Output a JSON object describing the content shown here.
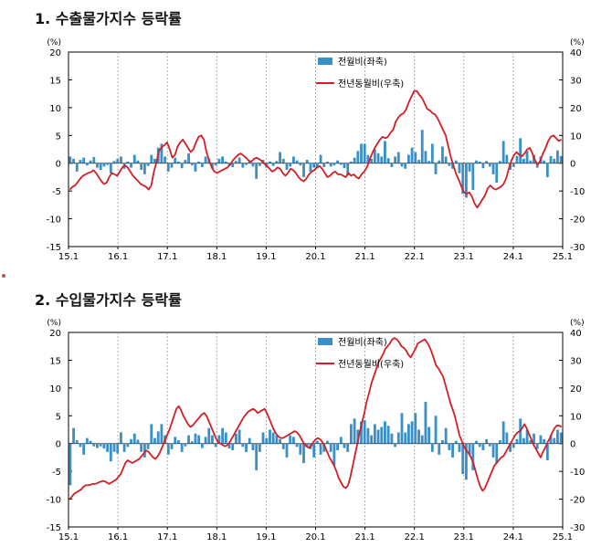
{
  "colors": {
    "bar": "#3b8fc7",
    "line": "#d21f26",
    "grid": "#9a9a9a",
    "axis": "#000000"
  },
  "chart_data": [
    {
      "type": "bar+line",
      "title": "1. 수출물가지수 등락률",
      "left_unit": "(%)",
      "right_unit": "(%)",
      "ylim_left": [
        -15,
        20
      ],
      "ylim_right": [
        -30,
        40
      ],
      "yticks_left": [
        "20",
        "15",
        "10",
        "5",
        "0",
        "-5",
        "-10",
        "-15"
      ],
      "yticks_right": [
        "40",
        "30",
        "20",
        "10",
        "0",
        "-10",
        "-20",
        "-30"
      ],
      "xticks": [
        "15.1",
        "16.1",
        "17.1",
        "18.1",
        "19.1",
        "20.1",
        "21.1",
        "22.1",
        "23.1",
        "24.1",
        "25.1"
      ],
      "legend": [
        "전월비(좌축)",
        "전년동월비(우축)"
      ],
      "series": [
        {
          "name": "전월비(좌축)",
          "axis": "left",
          "kind": "bar",
          "values": [
            1.2,
            0.8,
            -1.5,
            0.6,
            1.0,
            -0.4,
            0.5,
            1.1,
            -0.8,
            -1.2,
            -0.6,
            -0.3,
            -1.8,
            0.4,
            0.8,
            1.2,
            -1.0,
            0.3,
            -0.8,
            1.5,
            0.5,
            -1.2,
            -2.0,
            -0.5,
            1.5,
            0.8,
            2.8,
            3.5,
            1.2,
            -1.5,
            -0.8,
            1.0,
            0.3,
            -0.9,
            0.6,
            1.8,
            -0.4,
            -1.5,
            0.3,
            -0.7,
            1.2,
            0.8,
            -1.0,
            -0.4,
            0.8,
            1.2,
            0.3,
            -0.5,
            -0.7,
            0.4,
            1.0,
            -0.8,
            -0.3,
            0.5,
            -0.6,
            -2.8,
            -0.5,
            0.6,
            -0.8,
            0.3,
            -0.5,
            0.4,
            2.0,
            0.8,
            -1.2,
            -0.6,
            1.2,
            0.5,
            -0.4,
            -2.5,
            0.6,
            -1.5,
            -0.8,
            -0.9,
            1.5,
            -0.7,
            0.3,
            -0.6,
            -0.4,
            0.5,
            -0.3,
            -0.9,
            -2.2,
            0.3,
            1.0,
            2.2,
            3.5,
            3.5,
            1.5,
            0.8,
            2.5,
            1.8,
            1.2,
            4.0,
            0.9,
            -0.7,
            1.2,
            2.0,
            -0.6,
            -1.0,
            1.5,
            2.8,
            2.0,
            0.6,
            6.0,
            2.2,
            0.4,
            3.5,
            -2.0,
            0.5,
            3.0,
            1.2,
            -0.5,
            -1.0,
            0.5,
            -1.8,
            -5.5,
            -6.2,
            -1.5,
            -4.8,
            0.5,
            0.3,
            -0.9,
            0.4,
            -0.6,
            -2.0,
            -3.5,
            0.4,
            4.0,
            1.5,
            -1.2,
            -0.7,
            1.3,
            4.5,
            0.8,
            2.2,
            0.5,
            1.5,
            -0.8,
            1.2,
            0.5,
            -2.5,
            1.3,
            0.8,
            2.3,
            1.3
          ]
        },
        {
          "name": "전년동월비(우축)",
          "axis": "right",
          "kind": "line",
          "values": [
            -9.5,
            -8.5,
            -8.0,
            -6.8,
            -5.5,
            -4.5,
            -4.0,
            -3.5,
            -3.2,
            -2.5,
            -3.5,
            -5.0,
            -6.5,
            -7.5,
            -7.0,
            -5.0,
            -3.5,
            -4.0,
            -4.5,
            -3.0,
            -1.5,
            -0.8,
            -1.5,
            -3.0,
            -4.5,
            -5.5,
            -6.5,
            -7.5,
            -8.0,
            -8.5,
            -9.5,
            -8.0,
            -3.0,
            0.5,
            4.5,
            5.8,
            6.5,
            7.5,
            5.0,
            2.0,
            3.0,
            6.0,
            7.5,
            8.5,
            7.0,
            5.5,
            4.0,
            5.0,
            7.5,
            9.5,
            10.0,
            8.5,
            4.0,
            1.0,
            -1.5,
            -3.0,
            -3.5,
            -3.0,
            -2.5,
            -2.0,
            -1.5,
            -0.5,
            1.0,
            2.0,
            3.0,
            3.5,
            2.8,
            2.0,
            1.0,
            0.5,
            1.5,
            2.0,
            1.5,
            0.8,
            -0.2,
            -1.0,
            -2.0,
            -3.0,
            -2.5,
            -1.5,
            -2.0,
            -3.5,
            -4.5,
            -3.5,
            -2.0,
            -2.5,
            -3.5,
            -5.0,
            -6.0,
            -6.5,
            -5.5,
            -4.0,
            -3.0,
            -2.5,
            -1.5,
            -1.0,
            -2.0,
            -3.5,
            -5.0,
            -4.5,
            -3.5,
            -3.0,
            -4.0,
            -4.0,
            -4.5,
            -5.0,
            -3.5,
            -4.5,
            -4.0,
            -5.0,
            -5.5,
            -4.0,
            -3.0,
            -1.5,
            1.0,
            3.5,
            5.5,
            7.0,
            8.5,
            9.5,
            9.0,
            9.5,
            11.0,
            12.0,
            15.0,
            16.5,
            17.5,
            18.0,
            19.5,
            22.0,
            24.0,
            26.0,
            26.0,
            24.5,
            23.5,
            21.5,
            19.5,
            19.0,
            18.0,
            17.5,
            16.0,
            14.0,
            12.0,
            10.0,
            6.0,
            2.0,
            -1.0,
            -4.0,
            -6.0,
            -8.5,
            -10.5,
            -11.0,
            -10.5,
            -12.0,
            -14.5,
            -16.0,
            -14.5,
            -13.0,
            -11.5,
            -9.0,
            -8.0,
            -9.0,
            -9.5,
            -9.0,
            -8.5,
            -7.5,
            -5.5,
            -2.0,
            1.0,
            3.0,
            4.0,
            3.0,
            2.5,
            3.5,
            5.0,
            5.5,
            3.5,
            1.0,
            -0.5,
            1.0,
            3.5,
            5.5,
            8.0,
            9.5,
            10.0,
            9.0,
            8.0,
            8.5
          ]
        }
      ]
    },
    {
      "type": "bar+line",
      "title": "2. 수입물가지수 등락률",
      "left_unit": "(%)",
      "right_unit": "(%)",
      "ylim_left": [
        -15,
        20
      ],
      "ylim_right": [
        -30,
        40
      ],
      "yticks_left": [
        "20",
        "15",
        "10",
        "5",
        "0",
        "-5",
        "-10",
        "-15"
      ],
      "yticks_right": [
        "40",
        "30",
        "20",
        "10",
        "0",
        "-10",
        "-20",
        "-30"
      ],
      "xticks": [
        "15.1",
        "16.1",
        "17.1",
        "18.1",
        "19.1",
        "20.1",
        "21.1",
        "22.1",
        "23.1",
        "24.1",
        "25.1"
      ],
      "legend": [
        "전월비(좌축)",
        "전년동월비(우축)"
      ],
      "series": [
        {
          "name": "전월비(좌축)",
          "axis": "left",
          "kind": "bar",
          "values": [
            -7.5,
            2.8,
            0.6,
            -0.6,
            -2.0,
            1.0,
            0.5,
            -0.5,
            -0.8,
            -0.5,
            -0.9,
            -1.5,
            -3.2,
            -1.5,
            -1.8,
            2.0,
            -1.5,
            -0.6,
            0.8,
            1.8,
            0.7,
            -1.5,
            -2.5,
            -1.0,
            3.5,
            1.0,
            2.2,
            3.5,
            1.5,
            -2.0,
            -1.0,
            1.2,
            0.6,
            -1.5,
            -0.5,
            1.5,
            0.4,
            1.8,
            1.5,
            -0.8,
            1.2,
            2.8,
            1.5,
            -0.6,
            1.5,
            2.8,
            2.0,
            -0.9,
            -1.2,
            1.8,
            2.5,
            -0.6,
            -1.5,
            1.0,
            -1.2,
            -4.8,
            -1.5,
            2.0,
            1.0,
            2.5,
            2.0,
            1.5,
            0.8,
            -1.0,
            -2.5,
            1.5,
            1.2,
            -0.6,
            -2.0,
            -3.5,
            -0.6,
            -1.0,
            -2.5,
            0.5,
            -2.0,
            -1.5,
            0.5,
            -1.5,
            -4.0,
            -1.2,
            1.2,
            -0.8,
            -1.5,
            3.5,
            4.5,
            2.5,
            4.0,
            4.2,
            2.8,
            1.5,
            3.5,
            2.5,
            3.0,
            4.0,
            3.2,
            1.8,
            -0.6,
            2.0,
            5.5,
            2.0,
            3.5,
            4.0,
            5.5,
            2.5,
            1.5,
            7.5,
            3.0,
            -1.5,
            5.0,
            -2.0,
            0.6,
            2.8,
            -1.2,
            -2.5,
            0.5,
            -1.5,
            -5.5,
            -6.5,
            -2.0,
            -4.8,
            0.5,
            -0.6,
            -1.2,
            0.8,
            -0.5,
            -2.5,
            -3.5,
            0.6,
            4.0,
            2.0,
            -1.5,
            -0.8,
            0.8,
            4.5,
            1.0,
            2.5,
            0.6,
            1.8,
            -1.0,
            1.5,
            0.8,
            -3.0,
            1.5,
            1.0,
            2.5,
            2.0
          ]
        },
        {
          "name": "전년동월비(우축)",
          "axis": "right",
          "kind": "line",
          "values": [
            -20.0,
            -19.0,
            -18.0,
            -17.5,
            -17.0,
            -16.5,
            -15.5,
            -15.0,
            -15.0,
            -14.8,
            -14.5,
            -14.5,
            -14.2,
            -13.8,
            -13.5,
            -13.5,
            -14.0,
            -14.5,
            -14.0,
            -13.5,
            -13.0,
            -12.0,
            -11.0,
            -9.0,
            -7.0,
            -6.0,
            -6.5,
            -7.0,
            -6.5,
            -6.0,
            -5.5,
            -4.5,
            -3.5,
            -2.5,
            -3.0,
            -4.0,
            -5.0,
            -5.5,
            -4.5,
            -3.0,
            -1.0,
            1.0,
            3.0,
            5.0,
            7.5,
            10.0,
            12.5,
            13.5,
            12.0,
            10.0,
            8.5,
            7.0,
            6.0,
            6.5,
            7.5,
            8.5,
            9.5,
            10.5,
            11.0,
            10.0,
            8.0,
            6.0,
            4.0,
            2.0,
            0.5,
            0.0,
            -0.5,
            -1.0,
            -0.5,
            0.5,
            2.0,
            3.5,
            5.0,
            6.5,
            8.0,
            9.5,
            10.5,
            11.5,
            12.0,
            12.5,
            12.0,
            11.0,
            11.5,
            12.0,
            12.5,
            11.0,
            9.0,
            7.0,
            5.0,
            3.5,
            2.5,
            2.0,
            2.0,
            2.5,
            3.0,
            3.5,
            4.0,
            4.5,
            4.0,
            3.0,
            1.5,
            0.0,
            -1.0,
            -1.5,
            -1.0,
            0.5,
            1.5,
            2.0,
            1.5,
            0.5,
            -1.0,
            -3.0,
            -5.0,
            -6.5,
            -8.0,
            -10.0,
            -12.5,
            -14.0,
            -15.5,
            -16.0,
            -15.0,
            -12.0,
            -8.0,
            -4.0,
            0.0,
            4.0,
            7.5,
            11.0,
            15.0,
            18.0,
            21.5,
            24.0,
            26.5,
            29.0,
            30.5,
            32.0,
            34.0,
            35.0,
            36.0,
            37.5,
            38.0,
            37.5,
            36.5,
            35.0,
            34.5,
            33.5,
            32.0,
            31.0,
            32.5,
            34.0,
            36.0,
            36.5,
            37.0,
            37.5,
            36.5,
            35.0,
            33.0,
            30.5,
            28.0,
            27.0,
            25.5,
            24.0,
            21.0,
            18.0,
            15.0,
            12.5,
            10.0,
            6.5,
            3.0,
            1.0,
            -1.0,
            -2.5,
            -3.5,
            -5.0,
            -7.0,
            -10.0,
            -13.0,
            -15.5,
            -17.0,
            -16.0,
            -14.0,
            -12.0,
            -10.0,
            -8.0,
            -7.0,
            -6.0,
            -5.0,
            -4.5,
            -3.0,
            -1.5,
            0.0,
            1.5,
            3.0,
            4.0,
            4.5,
            5.5,
            7.0,
            5.5,
            3.5,
            1.5,
            -0.5,
            -2.0,
            -3.5,
            -5.0,
            -3.0,
            -1.5,
            0.5,
            2.0,
            4.0,
            5.5,
            6.5,
            6.5,
            6.0
          ]
        }
      ]
    }
  ]
}
